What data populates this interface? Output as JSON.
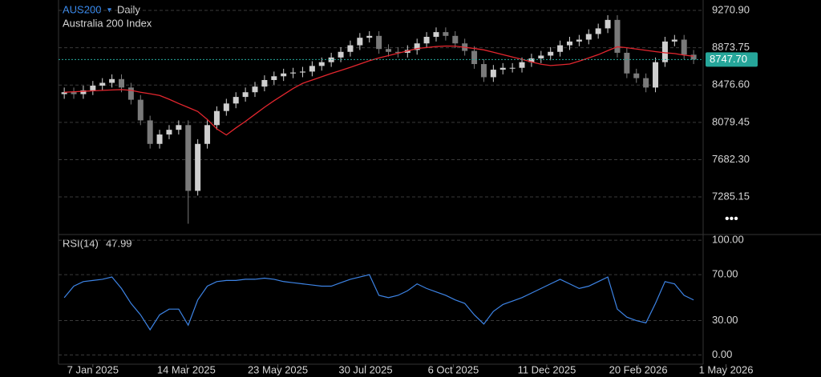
{
  "chart_data": [
    {
      "type": "candlestick",
      "title": "AUS200",
      "interval": "Daily",
      "subtitle": "Australia 200 Index",
      "x": [
        0,
        5,
        10,
        15,
        20,
        25,
        30,
        35,
        40,
        45,
        50,
        55,
        60,
        65,
        70,
        75,
        80,
        85,
        90,
        95,
        100,
        105,
        110,
        115,
        120,
        125,
        130,
        135,
        140,
        145,
        150,
        155,
        160,
        165,
        170,
        175,
        180,
        185,
        190,
        195,
        200,
        205,
        210,
        215,
        220,
        225,
        230,
        235,
        240,
        245,
        250,
        255,
        260,
        265,
        270,
        275,
        280,
        285,
        290,
        295,
        300,
        305,
        310,
        315,
        320,
        325,
        330
      ],
      "open": [
        8380,
        8400,
        8380,
        8420,
        8470,
        8500,
        8540,
        8450,
        8320,
        8100,
        7850,
        7950,
        8000,
        8050,
        7350,
        7850,
        8050,
        8200,
        8280,
        8350,
        8400,
        8460,
        8530,
        8570,
        8600,
        8610,
        8620,
        8680,
        8720,
        8770,
        8830,
        8900,
        8980,
        9000,
        8860,
        8830,
        8820,
        8850,
        8920,
        8990,
        9040,
        9000,
        8920,
        8840,
        8700,
        8560,
        8640,
        8660,
        8660,
        8720,
        8760,
        8790,
        8830,
        8900,
        8940,
        8960,
        9020,
        9080,
        9170,
        8820,
        8600,
        8550,
        8450,
        8720,
        8940,
        8960,
        8800
      ],
      "high": [
        8450,
        8450,
        8470,
        8520,
        8550,
        8590,
        8590,
        8500,
        8370,
        8150,
        8000,
        8050,
        8100,
        8100,
        7900,
        8100,
        8250,
        8330,
        8400,
        8450,
        8510,
        8580,
        8620,
        8650,
        8660,
        8670,
        8730,
        8770,
        8820,
        8880,
        8950,
        9030,
        9050,
        9050,
        8910,
        8880,
        8900,
        8970,
        9040,
        9090,
        9090,
        9050,
        8970,
        8890,
        8750,
        8690,
        8710,
        8710,
        8770,
        8810,
        8840,
        8880,
        8950,
        8990,
        9010,
        9070,
        9130,
        9220,
        9220,
        8870,
        8650,
        8600,
        8770,
        8990,
        9010,
        9010,
        8850
      ],
      "low": [
        8330,
        8330,
        8330,
        8370,
        8420,
        8450,
        8400,
        8270,
        8050,
        7800,
        7800,
        7900,
        7950,
        7000,
        7300,
        7800,
        8000,
        8150,
        8230,
        8300,
        8350,
        8410,
        8480,
        8520,
        8550,
        8560,
        8570,
        8630,
        8670,
        8720,
        8780,
        8850,
        8930,
        8810,
        8780,
        8770,
        8770,
        8800,
        8870,
        8940,
        8950,
        8870,
        8790,
        8650,
        8510,
        8510,
        8590,
        8610,
        8610,
        8670,
        8710,
        8740,
        8780,
        8850,
        8890,
        8910,
        8970,
        9030,
        8770,
        8550,
        8500,
        8400,
        8400,
        8670,
        8890,
        8750,
        8700
      ],
      "close": [
        8400,
        8380,
        8420,
        8470,
        8500,
        8540,
        8450,
        8320,
        8100,
        7850,
        7950,
        8000,
        8050,
        7350,
        7850,
        8050,
        8200,
        8280,
        8350,
        8400,
        8460,
        8530,
        8570,
        8600,
        8610,
        8620,
        8680,
        8720,
        8770,
        8830,
        8900,
        8980,
        9000,
        8860,
        8830,
        8820,
        8850,
        8920,
        8990,
        9040,
        9000,
        8920,
        8840,
        8700,
        8560,
        8640,
        8660,
        8660,
        8720,
        8760,
        8790,
        8830,
        8900,
        8940,
        8960,
        9020,
        9080,
        9170,
        8820,
        8600,
        8550,
        8450,
        8720,
        8940,
        8960,
        8800,
        8748
      ],
      "up_color": "#cfcfcf",
      "down_color": "#7a7a7a",
      "ma": {
        "color": "#e3262e",
        "values": [
          8400,
          8405,
          8410,
          8415,
          8420,
          8424,
          8428,
          8420,
          8400,
          8384,
          8366,
          8325,
          8280,
          8238,
          8195,
          8110,
          8010,
          7945,
          8020,
          8090,
          8165,
          8240,
          8310,
          8375,
          8440,
          8495,
          8530,
          8565,
          8600,
          8632,
          8665,
          8700,
          8735,
          8765,
          8790,
          8815,
          8840,
          8865,
          8876,
          8886,
          8892,
          8891,
          8878,
          8866,
          8851,
          8826,
          8800,
          8775,
          8750,
          8723,
          8698,
          8684,
          8692,
          8700,
          8731,
          8765,
          8800,
          8843,
          8884,
          8874,
          8860,
          8846,
          8832,
          8820,
          8812,
          8795,
          8783
        ]
      },
      "last_price": {
        "value": 8747.7,
        "label": "8747.70"
      },
      "last_price_color": "#26a69a",
      "ylim": [
        6885,
        9382
      ],
      "yticks": [
        {
          "value": 7285.15,
          "label": "7285.15"
        },
        {
          "value": 7682.3,
          "label": "7682.30"
        },
        {
          "value": 8079.45,
          "label": "8079.45"
        },
        {
          "value": 8476.6,
          "label": "8476.60"
        },
        {
          "value": 8873.75,
          "label": "8873.75"
        },
        {
          "value": 9270.9,
          "label": "9270.90"
        }
      ],
      "xlim": [
        -3,
        335
      ],
      "xticks": [
        {
          "value": 15,
          "label": "7 Jan 2025"
        },
        {
          "value": 64,
          "label": "14 Mar 2025"
        },
        {
          "value": 112,
          "label": "23 May 2025"
        },
        {
          "value": 158,
          "label": "30 Jul 2025"
        },
        {
          "value": 204,
          "label": "6 Oct 2025"
        },
        {
          "value": 253,
          "label": "11 Dec 2025"
        },
        {
          "value": 301,
          "label": "20 Feb 2026"
        },
        {
          "value": 347,
          "label": "1 May 2026"
        }
      ],
      "grid": true
    },
    {
      "type": "line",
      "title": "RSI(14)",
      "color": "#3d84e6",
      "values": [
        50,
        60,
        64,
        65,
        66,
        68,
        58,
        45,
        35,
        22,
        35,
        40,
        40,
        26,
        48,
        60,
        64,
        65,
        65,
        66,
        66,
        67,
        66,
        64,
        63,
        62,
        61,
        60,
        60,
        63,
        66,
        68,
        70,
        52,
        50,
        52,
        56,
        62,
        58,
        55,
        52,
        48,
        45,
        35,
        27,
        38,
        44,
        47,
        50,
        54,
        58,
        62,
        66,
        62,
        58,
        60,
        64,
        68,
        40,
        33,
        30,
        28,
        45,
        64,
        62,
        52,
        47.99
      ],
      "ylim": [
        -8,
        105
      ],
      "yticks": [
        {
          "value": 0,
          "label": "0.00"
        },
        {
          "value": 30,
          "label": "30.00"
        },
        {
          "value": 70,
          "label": "70.00"
        },
        {
          "value": 100,
          "label": "100.00"
        }
      ],
      "grid": true
    }
  ]
}
